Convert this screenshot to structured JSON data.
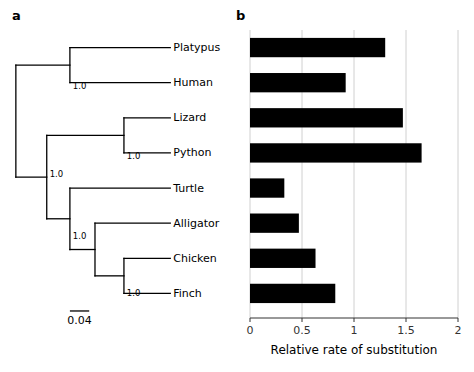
{
  "chart_data": [
    {
      "type": "tree",
      "title": "a",
      "categories": [
        "Platypus",
        "Human",
        "Lizard",
        "Python",
        "Turtle",
        "Alligator",
        "Chicken",
        "Finch"
      ],
      "annotations": [
        "1.0",
        "1.0",
        "1.0",
        "1.0",
        "1.0",
        "0.04"
      ]
    },
    {
      "type": "bar",
      "title": "b",
      "orientation": "horizontal",
      "values": [
        1.3,
        0.92,
        1.47,
        1.65,
        0.33,
        0.47,
        0.63,
        0.82
      ],
      "color": "#000000",
      "xlabel": "Relative rate of substitution",
      "xlim": [
        0,
        2
      ],
      "xticks": [
        0,
        0.5,
        1,
        1.5,
        2
      ],
      "grid": true,
      "tick_labels": "x"
    }
  ]
}
